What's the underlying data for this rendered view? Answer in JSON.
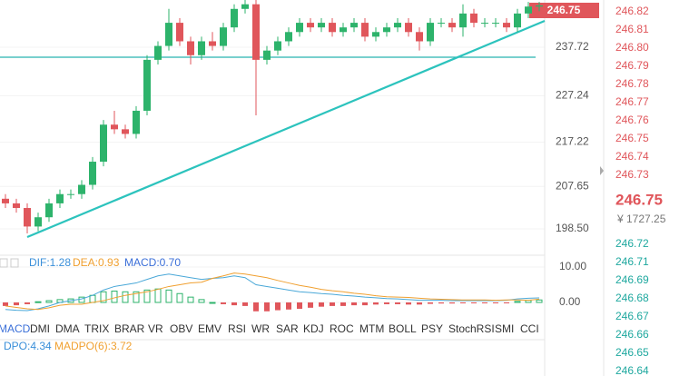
{
  "chart_data": {
    "type": "candlestick",
    "last_price_label": "246.75",
    "ylim": [
      193.0,
      247.92
    ],
    "yticks": [
      {
        "value": 198.5,
        "label": "198.50"
      },
      207.65,
      217.22,
      227.24,
      237.72
    ],
    "up_color": "#2db36b",
    "down_color": "#e0565b",
    "candles": [
      {
        "o": 205,
        "h": 206,
        "l": 203,
        "c": 204
      },
      {
        "o": 204,
        "h": 205,
        "l": 202,
        "c": 203
      },
      {
        "o": 203,
        "h": 204,
        "l": 197.5,
        "c": 199
      },
      {
        "o": 199,
        "h": 202,
        "l": 198,
        "c": 201
      },
      {
        "o": 201,
        "h": 205,
        "l": 200,
        "c": 204
      },
      {
        "o": 204,
        "h": 207,
        "l": 203,
        "c": 206
      },
      {
        "o": 206,
        "h": 207,
        "l": 205,
        "c": 206
      },
      {
        "o": 206,
        "h": 209,
        "l": 205,
        "c": 208
      },
      {
        "o": 208,
        "h": 214,
        "l": 207,
        "c": 213
      },
      {
        "o": 213,
        "h": 222,
        "l": 212,
        "c": 221
      },
      {
        "o": 221,
        "h": 224,
        "l": 219,
        "c": 220
      },
      {
        "o": 220,
        "h": 221,
        "l": 218,
        "c": 219
      },
      {
        "o": 219,
        "h": 225,
        "l": 218,
        "c": 224
      },
      {
        "o": 224,
        "h": 236,
        "l": 223,
        "c": 235
      },
      {
        "o": 235,
        "h": 239,
        "l": 234,
        "c": 238
      },
      {
        "o": 238,
        "h": 246,
        "l": 237,
        "c": 243
      },
      {
        "o": 243,
        "h": 244,
        "l": 238,
        "c": 239
      },
      {
        "o": 239,
        "h": 240,
        "l": 234,
        "c": 236
      },
      {
        "o": 236,
        "h": 240,
        "l": 235,
        "c": 239
      },
      {
        "o": 239,
        "h": 241,
        "l": 237,
        "c": 238
      },
      {
        "o": 238,
        "h": 243,
        "l": 237,
        "c": 242
      },
      {
        "o": 242,
        "h": 247,
        "l": 241,
        "c": 246
      },
      {
        "o": 246,
        "h": 248,
        "l": 245,
        "c": 247
      },
      {
        "o": 247,
        "h": 248,
        "l": 223,
        "c": 235
      },
      {
        "o": 235,
        "h": 238,
        "l": 234,
        "c": 237
      },
      {
        "o": 237,
        "h": 240,
        "l": 236,
        "c": 239
      },
      {
        "o": 239,
        "h": 242,
        "l": 238,
        "c": 241
      },
      {
        "o": 241,
        "h": 244,
        "l": 240,
        "c": 243
      },
      {
        "o": 243,
        "h": 244,
        "l": 241,
        "c": 242
      },
      {
        "o": 242,
        "h": 244,
        "l": 241,
        "c": 243
      },
      {
        "o": 243,
        "h": 244,
        "l": 240,
        "c": 241
      },
      {
        "o": 241,
        "h": 243,
        "l": 240,
        "c": 242
      },
      {
        "o": 242,
        "h": 244,
        "l": 241,
        "c": 243
      },
      {
        "o": 243,
        "h": 244,
        "l": 239,
        "c": 240
      },
      {
        "o": 240,
        "h": 242,
        "l": 239,
        "c": 241
      },
      {
        "o": 241,
        "h": 243,
        "l": 240,
        "c": 242
      },
      {
        "o": 242,
        "h": 244,
        "l": 241,
        "c": 243
      },
      {
        "o": 243,
        "h": 244,
        "l": 240,
        "c": 241
      },
      {
        "o": 241,
        "h": 242,
        "l": 237,
        "c": 239
      },
      {
        "o": 239,
        "h": 244,
        "l": 238,
        "c": 243
      },
      {
        "o": 243,
        "h": 244,
        "l": 242,
        "c": 243
      },
      {
        "o": 243,
        "h": 244,
        "l": 241,
        "c": 242
      },
      {
        "o": 242,
        "h": 247,
        "l": 240,
        "c": 245
      },
      {
        "o": 245,
        "h": 246,
        "l": 242,
        "c": 243
      },
      {
        "o": 243,
        "h": 244,
        "l": 242,
        "c": 243
      },
      {
        "o": 243,
        "h": 244,
        "l": 242,
        "c": 243
      },
      {
        "o": 243,
        "h": 244,
        "l": 241,
        "c": 242
      },
      {
        "o": 242,
        "h": 246,
        "l": 241,
        "c": 245
      },
      {
        "o": 245,
        "h": 247.5,
        "l": 244,
        "c": 246.5
      },
      {
        "o": 246.5,
        "h": 247.5,
        "l": 245.5,
        "c": 246.75
      }
    ],
    "macd": {
      "legend": [
        "DIF:1.28",
        "DEA:0.93",
        "MACD:0.70"
      ],
      "ylim": [
        -9.49,
        12.31
      ],
      "yticks": [
        {
          "value": 0,
          "label": "0.00"
        },
        {
          "value": 10,
          "label": "10.00"
        }
      ],
      "dif_color": "#4aa8d8",
      "dea_color": "#f0a030",
      "pos_color": "#2db36b",
      "neg_color": "#e0565b",
      "hist": [
        -1,
        -0.8,
        -0.5,
        0.2,
        0.5,
        0.8,
        1,
        1.5,
        2,
        3,
        3.2,
        3,
        3,
        3.5,
        3.8,
        3.5,
        2.5,
        1.5,
        0.8,
        0,
        -0.5,
        -0.8,
        -1,
        -2.5,
        -2.5,
        -2.2,
        -2,
        -1.8,
        -1.5,
        -1.2,
        -1,
        -1,
        -0.8,
        -0.8,
        -0.6,
        -0.5,
        -0.5,
        -0.6,
        -0.6,
        -0.4,
        -0.3,
        -0.3,
        -0.2,
        -0.2,
        -0.2,
        -0.1,
        -0.1,
        0.3,
        0.6,
        0.7
      ],
      "dif": [
        -2,
        -2.2,
        -2.3,
        -1.8,
        -1,
        0,
        0.5,
        1,
        2,
        3.5,
        4.5,
        5,
        5.5,
        6.5,
        7.5,
        8,
        7.5,
        7,
        6.5,
        6.8,
        7,
        7.5,
        7,
        5,
        4.5,
        4,
        3.5,
        3,
        2.8,
        2.5,
        2.3,
        2,
        1.8,
        1.5,
        1.3,
        1.1,
        1,
        0.8,
        0.6,
        0.6,
        0.6,
        0.5,
        0.5,
        0.5,
        0.5,
        0.5,
        0.6,
        1,
        1.2,
        1.28
      ],
      "dea": [
        -1,
        -1.4,
        -1.8,
        -2,
        -1.5,
        -0.8,
        -0.5,
        -0.5,
        0,
        0.5,
        1.3,
        2,
        2.5,
        3,
        3.7,
        4.5,
        5,
        5.5,
        5.7,
        6.8,
        7.5,
        8.3,
        8,
        7.5,
        7,
        6.2,
        5.5,
        4.8,
        4.3,
        3.7,
        3.3,
        3,
        2.6,
        2.3,
        1.9,
        1.6,
        1.5,
        1.4,
        1.2,
        1,
        0.9,
        0.8,
        0.7,
        0.7,
        0.7,
        0.6,
        0.7,
        0.7,
        0.6,
        0.93
      ]
    }
  },
  "indicator_tabs": [
    "MACD",
    "DMI",
    "DMA",
    "TRIX",
    "BRAR",
    "VR",
    "OBV",
    "EMV",
    "RSI",
    "WR",
    "SAR",
    "KDJ",
    "ROC",
    "MTM",
    "BOLL",
    "PSY",
    "StochRSI",
    "SMI",
    "CCI"
  ],
  "dpo_legend": [
    "DPO:4.34",
    "MADPO(6):3.72"
  ],
  "side_panel": {
    "asks": [
      "246.82",
      "246.81",
      "246.80",
      "246.79",
      "246.78",
      "246.77",
      "246.76",
      "246.75",
      "246.74",
      "246.73"
    ],
    "price": "246.75",
    "cny": "¥ 1727.25",
    "bids": [
      "246.72",
      "246.71",
      "246.69",
      "246.68",
      "246.67",
      "246.66",
      "246.65",
      "246.64"
    ]
  }
}
